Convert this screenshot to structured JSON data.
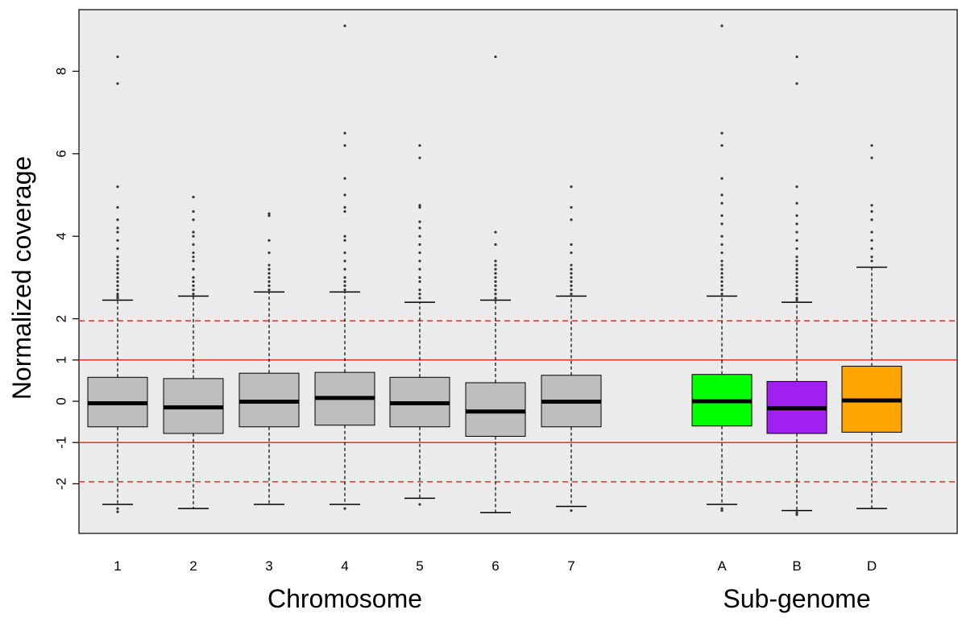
{
  "chart_data": {
    "type": "boxplot",
    "title": "",
    "ylabel": "Normalized coverage",
    "ylim": [
      -3.2,
      9.3
    ],
    "y_ticks": [
      {
        "value": -2,
        "label": "-2"
      },
      {
        "value": -1,
        "label": "-1"
      },
      {
        "value": 0,
        "label": "0"
      },
      {
        "value": 1,
        "label": "1"
      },
      {
        "value": 2,
        "label": "2"
      },
      {
        "value": 4,
        "label": "4"
      },
      {
        "value": 6,
        "label": "6"
      },
      {
        "value": 8,
        "label": "8"
      }
    ],
    "reference_lines": [
      {
        "y": 1,
        "style": "solid",
        "color": "#e8302a"
      },
      {
        "y": -1,
        "style": "solid",
        "color": "#e8302a"
      },
      {
        "y": 1.95,
        "style": "dashed",
        "color": "#e8302a"
      },
      {
        "y": -1.95,
        "style": "dashed",
        "color": "#e8302a"
      }
    ],
    "groups": [
      {
        "label": "Chromosome"
      },
      {
        "label": "Sub-genome"
      }
    ],
    "boxes": [
      {
        "label": "1",
        "group": 0,
        "color": "#bebebe",
        "q1": -0.62,
        "median": -0.05,
        "q3": 0.58,
        "whisker_low": -2.5,
        "whisker_high": 2.45,
        "outliers": [
          -2.6,
          -2.68,
          2.5,
          2.55,
          2.6,
          2.7,
          2.8,
          2.9,
          3.0,
          3.1,
          3.2,
          3.3,
          3.4,
          3.5,
          3.7,
          3.9,
          4.1,
          4.2,
          4.4,
          4.7,
          5.2,
          7.7,
          8.35
        ]
      },
      {
        "label": "2",
        "group": 0,
        "color": "#bebebe",
        "q1": -0.78,
        "median": -0.15,
        "q3": 0.55,
        "whisker_low": -2.6,
        "whisker_high": 2.55,
        "outliers": [
          2.6,
          2.7,
          2.8,
          2.9,
          3.0,
          3.2,
          3.4,
          3.5,
          3.6,
          3.8,
          4.0,
          4.1,
          4.4,
          4.6,
          4.95
        ]
      },
      {
        "label": "3",
        "group": 0,
        "color": "#bebebe",
        "q1": -0.62,
        "median": -0.01,
        "q3": 0.68,
        "whisker_low": -2.5,
        "whisker_high": 2.65,
        "outliers": [
          2.7,
          2.8,
          2.9,
          3.0,
          3.1,
          3.2,
          3.3,
          3.6,
          3.9,
          4.5,
          4.55
        ]
      },
      {
        "label": "4",
        "group": 0,
        "color": "#bebebe",
        "q1": -0.58,
        "median": 0.08,
        "q3": 0.7,
        "whisker_low": -2.5,
        "whisker_high": 2.65,
        "outliers": [
          -2.6,
          2.7,
          2.8,
          2.9,
          3.0,
          3.2,
          3.4,
          3.6,
          3.9,
          4.0,
          4.6,
          4.7,
          5.0,
          5.4,
          6.2,
          6.5,
          9.1
        ]
      },
      {
        "label": "5",
        "group": 0,
        "color": "#bebebe",
        "q1": -0.62,
        "median": -0.05,
        "q3": 0.58,
        "whisker_low": -2.35,
        "whisker_high": 2.4,
        "outliers": [
          -2.5,
          2.5,
          2.6,
          2.7,
          2.9,
          3.0,
          3.2,
          3.4,
          3.6,
          3.8,
          4.0,
          4.2,
          4.35,
          4.7,
          4.75,
          5.9,
          6.2
        ]
      },
      {
        "label": "6",
        "group": 0,
        "color": "#bebebe",
        "q1": -0.85,
        "median": -0.25,
        "q3": 0.45,
        "whisker_low": -2.7,
        "whisker_high": 2.45,
        "outliers": [
          2.5,
          2.6,
          2.7,
          2.8,
          2.9,
          3.0,
          3.1,
          3.2,
          3.3,
          3.4,
          3.8,
          4.1,
          8.35
        ]
      },
      {
        "label": "7",
        "group": 0,
        "color": "#bebebe",
        "q1": -0.62,
        "median": -0.01,
        "q3": 0.63,
        "whisker_low": -2.55,
        "whisker_high": 2.55,
        "outliers": [
          -2.65,
          2.6,
          2.7,
          2.8,
          2.9,
          3.0,
          3.1,
          3.2,
          3.3,
          3.6,
          3.8,
          4.4,
          4.7,
          5.2
        ]
      },
      {
        "label": "A",
        "group": 1,
        "color": "#00ff00",
        "q1": -0.6,
        "median": 0.0,
        "q3": 0.65,
        "whisker_low": -2.5,
        "whisker_high": 2.55,
        "outliers": [
          -2.6,
          -2.65,
          2.6,
          2.7,
          2.8,
          2.9,
          3.0,
          3.1,
          3.2,
          3.3,
          3.4,
          3.6,
          3.8,
          4.0,
          4.3,
          4.5,
          4.8,
          5.0,
          5.4,
          6.2,
          6.5,
          9.1
        ]
      },
      {
        "label": "B",
        "group": 1,
        "color": "#a020f0",
        "q1": -0.78,
        "median": -0.17,
        "q3": 0.48,
        "whisker_low": -2.65,
        "whisker_high": 2.4,
        "outliers": [
          -2.7,
          -2.75,
          2.45,
          2.5,
          2.6,
          2.7,
          2.8,
          2.9,
          3.0,
          3.1,
          3.2,
          3.3,
          3.4,
          3.5,
          3.7,
          3.9,
          4.1,
          4.3,
          4.5,
          4.8,
          5.2,
          7.7,
          8.35
        ]
      },
      {
        "label": "D",
        "group": 1,
        "color": "#ffa500",
        "q1": -0.75,
        "median": 0.02,
        "q3": 0.85,
        "whisker_low": -2.6,
        "whisker_high": 3.25,
        "outliers": [
          3.4,
          3.5,
          3.7,
          3.9,
          4.1,
          4.4,
          4.6,
          4.75,
          5.9,
          6.2
        ]
      }
    ]
  }
}
